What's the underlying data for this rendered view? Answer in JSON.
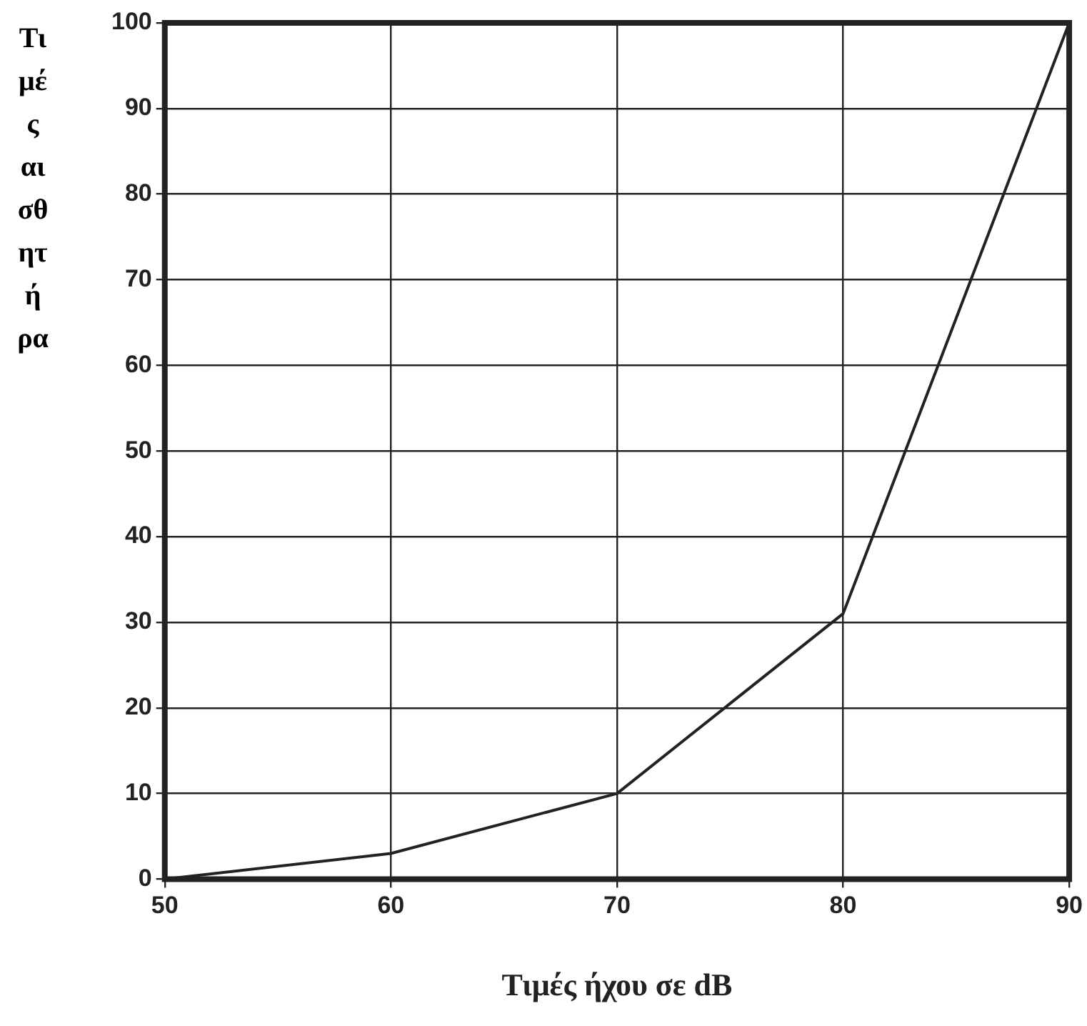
{
  "chart_data": {
    "type": "line",
    "xlabel": "Τιμές ήχου σε dB",
    "ylabel": "Τιμές αισθητήρα",
    "x": [
      50,
      60,
      70,
      80,
      90
    ],
    "series": [
      {
        "color": "#222222",
        "values": [
          0,
          3,
          10,
          31,
          100
        ]
      }
    ],
    "xlim": [
      50,
      90
    ],
    "xticks": [
      50,
      60,
      70,
      80,
      90
    ],
    "ylim": [
      0,
      100
    ],
    "yticks": [
      0,
      10,
      20,
      30,
      40,
      50,
      60,
      70,
      80,
      90,
      100
    ],
    "grid": true,
    "marker": "none",
    "line_style": "solid"
  }
}
